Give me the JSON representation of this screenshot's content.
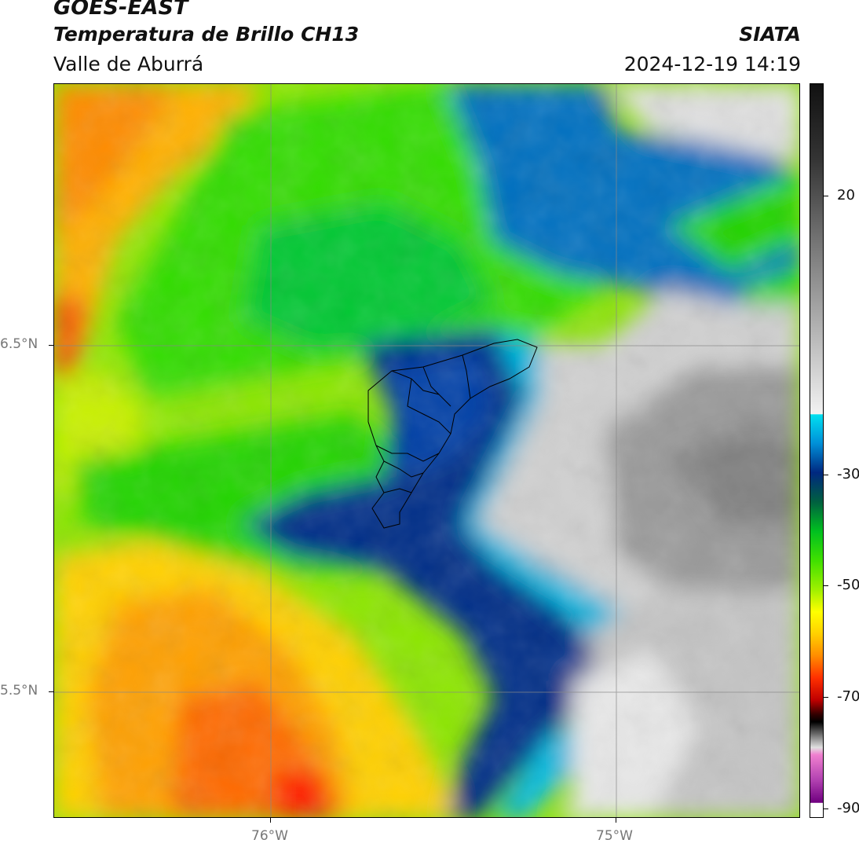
{
  "header": {
    "satellite": "GOES-EAST",
    "product": "Temperatura de Brillo CH13",
    "region": "Valle de Aburrá",
    "organization": "SIATA",
    "datetime": "2024-12-19 14:19"
  },
  "map": {
    "lat_labels": [
      "6.5°N",
      "5.5°N"
    ],
    "lon_labels": [
      "76°W",
      "75°W"
    ]
  },
  "colorbar": {
    "tick_labels": [
      "20",
      "-30",
      "-50",
      "-70",
      "-90"
    ],
    "colors": {
      "cloud_tops": "#8a1a8a",
      "cold": "#003080",
      "mid": "#00cc22",
      "warm": "#ffd400",
      "hot": "#ff3000",
      "surface": "#d4d4d4"
    }
  }
}
